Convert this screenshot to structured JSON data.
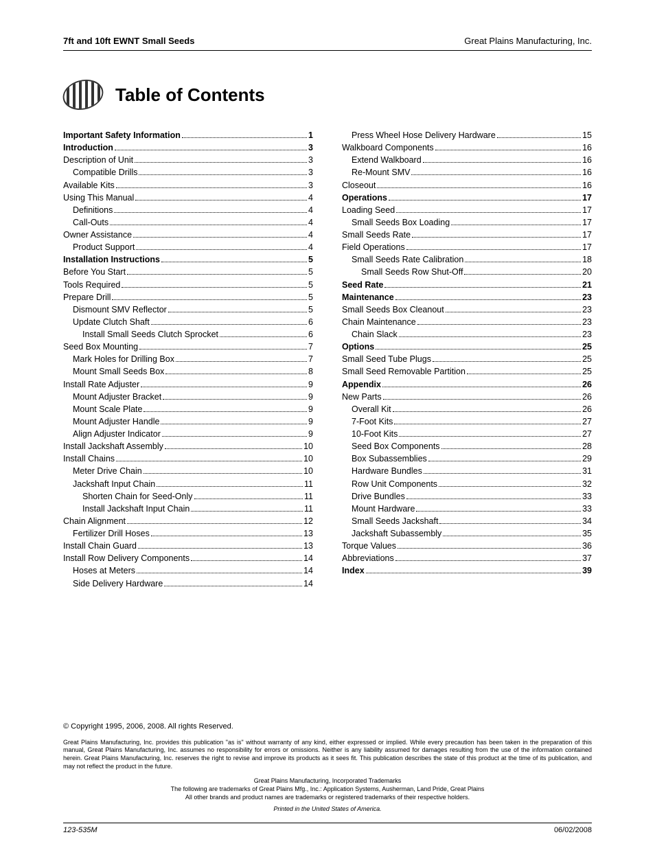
{
  "header": {
    "left": "7ft and 10ft EWNT Small Seeds",
    "right": "Great Plains Manufacturing, Inc."
  },
  "title": "Table of Contents",
  "toc": [
    {
      "level": 0,
      "label": "Important Safety Information",
      "page": "1"
    },
    {
      "level": 0,
      "label": "Introduction",
      "page": "3"
    },
    {
      "level": 1,
      "label": "Description of Unit",
      "page": "3"
    },
    {
      "level": 2,
      "label": "Compatible Drills",
      "page": "3"
    },
    {
      "level": 1,
      "label": "Available Kits",
      "page": "3"
    },
    {
      "level": 1,
      "label": "Using This Manual",
      "page": "4"
    },
    {
      "level": 2,
      "label": "Definitions",
      "page": "4"
    },
    {
      "level": 2,
      "label": "Call-Outs",
      "page": "4"
    },
    {
      "level": 1,
      "label": "Owner Assistance",
      "page": "4"
    },
    {
      "level": 2,
      "label": "Product Support",
      "page": "4"
    },
    {
      "level": 0,
      "label": "Installation Instructions",
      "page": "5"
    },
    {
      "level": 1,
      "label": "Before You Start",
      "page": "5"
    },
    {
      "level": 1,
      "label": "Tools Required",
      "page": "5"
    },
    {
      "level": 1,
      "label": "Prepare Drill",
      "page": "5"
    },
    {
      "level": 2,
      "label": "Dismount SMV Reflector",
      "page": "5"
    },
    {
      "level": 2,
      "label": "Update Clutch Shaft",
      "page": "6"
    },
    {
      "level": 3,
      "label": "Install Small Seeds Clutch Sprocket",
      "page": "6"
    },
    {
      "level": 1,
      "label": "Seed Box Mounting",
      "page": "7"
    },
    {
      "level": 2,
      "label": "Mark Holes for Drilling Box",
      "page": "7"
    },
    {
      "level": 2,
      "label": "Mount Small Seeds Box",
      "page": "8"
    },
    {
      "level": 1,
      "label": "Install Rate Adjuster",
      "page": "9"
    },
    {
      "level": 2,
      "label": "Mount Adjuster Bracket",
      "page": "9"
    },
    {
      "level": 2,
      "label": "Mount Scale Plate",
      "page": "9"
    },
    {
      "level": 2,
      "label": "Mount Adjuster Handle",
      "page": "9"
    },
    {
      "level": 2,
      "label": "Align Adjuster Indicator",
      "page": "9"
    },
    {
      "level": 1,
      "label": "Install Jackshaft Assembly",
      "page": "10"
    },
    {
      "level": 1,
      "label": "Install Chains",
      "page": "10"
    },
    {
      "level": 2,
      "label": "Meter Drive Chain",
      "page": "10"
    },
    {
      "level": 2,
      "label": "Jackshaft Input Chain",
      "page": "11"
    },
    {
      "level": 3,
      "label": "Shorten Chain for Seed-Only",
      "page": "11"
    },
    {
      "level": 3,
      "label": "Install Jackshaft Input Chain",
      "page": "11"
    },
    {
      "level": 1,
      "label": "Chain Alignment",
      "page": "12"
    },
    {
      "level": 2,
      "label": "Fertilizer Drill Hoses",
      "page": "13"
    },
    {
      "level": 1,
      "label": "Install Chain Guard",
      "page": "13"
    },
    {
      "level": 1,
      "label": "Install Row Delivery Components",
      "page": "14"
    },
    {
      "level": 2,
      "label": "Hoses at Meters",
      "page": "14"
    },
    {
      "level": 2,
      "label": "Side Delivery Hardware",
      "page": "14"
    },
    {
      "level": 2,
      "label": "Press Wheel Hose Delivery Hardware",
      "page": "15"
    },
    {
      "level": 1,
      "label": "Walkboard Components",
      "page": "16"
    },
    {
      "level": 2,
      "label": "Extend Walkboard",
      "page": "16"
    },
    {
      "level": 2,
      "label": "Re-Mount SMV",
      "page": "16"
    },
    {
      "level": 1,
      "label": "Closeout",
      "page": "16"
    },
    {
      "level": 0,
      "label": "Operations",
      "page": "17"
    },
    {
      "level": 1,
      "label": "Loading Seed",
      "page": "17"
    },
    {
      "level": 2,
      "label": "Small Seeds Box Loading",
      "page": "17"
    },
    {
      "level": 1,
      "label": "Small Seeds Rate",
      "page": "17"
    },
    {
      "level": 1,
      "label": "Field Operations",
      "page": "17"
    },
    {
      "level": 2,
      "label": "Small Seeds Rate Calibration",
      "page": "18"
    },
    {
      "level": 3,
      "label": "Small Seeds Row Shut-Off",
      "page": "20"
    },
    {
      "level": 0,
      "label": "Seed Rate",
      "page": "21"
    },
    {
      "level": 0,
      "label": "Maintenance",
      "page": "23"
    },
    {
      "level": 1,
      "label": "Small Seeds Box Cleanout",
      "page": "23"
    },
    {
      "level": 1,
      "label": "Chain Maintenance",
      "page": "23"
    },
    {
      "level": 2,
      "label": "Chain Slack",
      "page": "23"
    },
    {
      "level": 0,
      "label": "Options",
      "page": "25"
    },
    {
      "level": 1,
      "label": "Small Seed Tube Plugs",
      "page": "25"
    },
    {
      "level": 1,
      "label": "Small Seed Removable Partition",
      "page": "25"
    },
    {
      "level": 0,
      "label": "Appendix",
      "page": "26"
    },
    {
      "level": 1,
      "label": "New Parts",
      "page": "26"
    },
    {
      "level": 2,
      "label": "Overall Kit",
      "page": "26"
    },
    {
      "level": 2,
      "label": "7-Foot Kits",
      "page": "27"
    },
    {
      "level": 2,
      "label": "10-Foot Kits",
      "page": "27"
    },
    {
      "level": 2,
      "label": "Seed Box Components",
      "page": "28"
    },
    {
      "level": 2,
      "label": "Box Subassemblies",
      "page": "29"
    },
    {
      "level": 2,
      "label": "Hardware Bundles",
      "page": "31"
    },
    {
      "level": 2,
      "label": "Row Unit Components",
      "page": "32"
    },
    {
      "level": 2,
      "label": "Drive Bundles",
      "page": "33"
    },
    {
      "level": 2,
      "label": "Mount Hardware",
      "page": "33"
    },
    {
      "level": 2,
      "label": "Small Seeds Jackshaft",
      "page": "34"
    },
    {
      "level": 2,
      "label": "Jackshaft Subassembly",
      "page": "35"
    },
    {
      "level": 1,
      "label": "Torque Values",
      "page": "36"
    },
    {
      "level": 1,
      "label": "Abbreviations",
      "page": "37"
    },
    {
      "level": 0,
      "label": "Index",
      "page": "39"
    }
  ],
  "footer": {
    "copyright": "© Copyright 1995, 2006, 2008. All rights Reserved.",
    "disclaimer": "Great Plains Manufacturing, Inc. provides this publication \"as is\" without warranty of any kind, either expressed or implied. While every precaution has been taken in the preparation of this manual, Great Plains Manufacturing, Inc. assumes no responsibility for errors or omissions. Neither is any liability assumed for damages resulting from the use of the information contained herein. Great Plains Manufacturing, Inc. reserves the right to revise and improve its products as it sees fit. This publication describes the state of this product at the time of its publication, and may not reflect the product in the future.",
    "trademark_heading": "Great Plains Manufacturing, Incorporated Trademarks",
    "trademark_line": "The following are trademarks of Great Plains Mfg., Inc.: Application Systems, Ausherman, Land Pride, Great Plains",
    "other_tm": "All other brands and product names are trademarks or registered trademarks of their respective holders.",
    "printed": "Printed in the United States of America."
  },
  "bottom": {
    "docnum": "123-535M",
    "date": "06/02/2008"
  }
}
